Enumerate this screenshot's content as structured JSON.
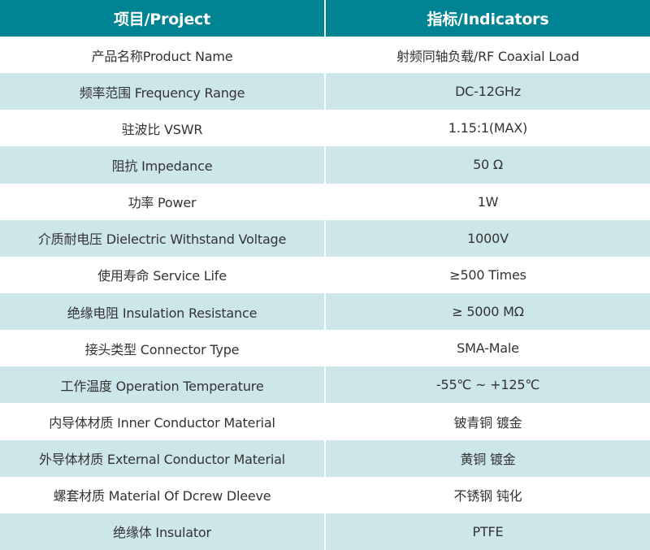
{
  "colors": {
    "header": "#008493",
    "alt_row": "#cde6ea"
  },
  "header": {
    "project": "项目/Project",
    "indicators": "指标/Indicators"
  },
  "rows": [
    {
      "project": "产品名称Product Name",
      "indicator": "射频同轴负载/RF Coaxial Load"
    },
    {
      "project": "频率范围 Frequency Range",
      "indicator": "DC-12GHz"
    },
    {
      "project": "驻波比 VSWR",
      "indicator": "1.15:1(MAX)"
    },
    {
      "project": "阻抗 Impedance",
      "indicator": "50 Ω"
    },
    {
      "project": "功率 Power",
      "indicator": "1W"
    },
    {
      "project": "介质耐电压 Dielectric Withstand Voltage",
      "indicator": "1000V"
    },
    {
      "project": "使用寿命 Service Life",
      "indicator": "≥500 Times"
    },
    {
      "project": "绝缘电阻 Insulation Resistance",
      "indicator": "≥ 5000 MΩ"
    },
    {
      "project": "接头类型 Connector Type",
      "indicator": "SMA-Male"
    },
    {
      "project": "工作温度 Operation Temperature",
      "indicator": "-55℃ ~ +125℃"
    },
    {
      "project": "内导体材质 Inner Conductor Material",
      "indicator": "铍青铜 镀金"
    },
    {
      "project": "外导体材质 External Conductor Material",
      "indicator": "黄铜 镀金"
    },
    {
      "project": "螺套材质 Material Of Dcrew Dleeve",
      "indicator": "不锈钢 钝化"
    },
    {
      "project": "绝缘体 Insulator",
      "indicator": "PTFE"
    }
  ]
}
